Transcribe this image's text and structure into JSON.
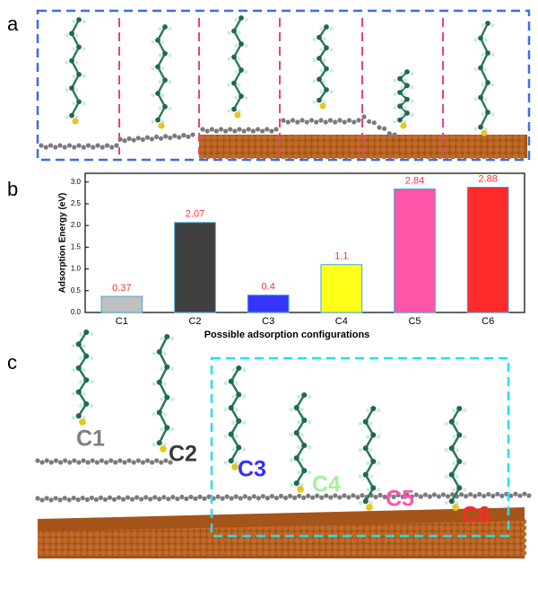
{
  "panel_labels": [
    "a",
    "b",
    "c"
  ],
  "chart_data": {
    "type": "bar",
    "ylabel": "Adsorption Energy (eV)",
    "xlabel": "Possible adsorption configurations",
    "categories": [
      "C1",
      "C2",
      "C3",
      "C4",
      "C5",
      "C6"
    ],
    "values": [
      0.37,
      2.07,
      0.4,
      1.1,
      2.84,
      2.88
    ],
    "colors": [
      "#c0c0c0",
      "#404040",
      "#3535ff",
      "#ffff1a",
      "#ff55a8",
      "#ff2a2a"
    ],
    "value_label_color": "#ff3030",
    "ylim": [
      0,
      3.2
    ],
    "yticks": [
      {
        "value": 0,
        "label": "0.0"
      },
      {
        "value": 0.5,
        "label": "0.5"
      },
      {
        "value": 1,
        "label": "1.0"
      },
      {
        "value": 1.5,
        "label": "1.5"
      },
      {
        "value": 2,
        "label": "2.0"
      },
      {
        "value": 2.5,
        "label": "2.5"
      },
      {
        "value": 3,
        "label": "3.0"
      }
    ]
  },
  "configuration_labels": [
    {
      "text": "C1",
      "color": "#808080"
    },
    {
      "text": "C2",
      "color": "#3a3a3a"
    },
    {
      "text": "C3",
      "color": "#3030ff"
    },
    {
      "text": "C4",
      "color": "#a8f0a0"
    },
    {
      "text": "C5",
      "color": "#ff55a8"
    },
    {
      "text": "C6",
      "color": "#ff2a2a"
    }
  ]
}
